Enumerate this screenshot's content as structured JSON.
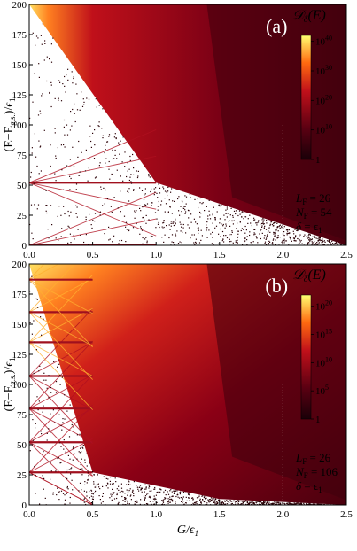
{
  "chart_data": [
    {
      "type": "heatmap",
      "panel_label": "(a)",
      "xlabel": "",
      "ylabel": "(E−E",
      "ylabel_sub": "g.s.",
      "ylabel_tail": ")/ϵ",
      "ylabel_tail_sub": "1",
      "xlim": [
        0,
        2.5
      ],
      "ylim": [
        0,
        200
      ],
      "xticks": [
        "0.0",
        "0.5",
        "1.0",
        "1.5",
        "2.0",
        "2.5"
      ],
      "yticks": [
        "0",
        "25",
        "50",
        "75",
        "100",
        "125",
        "150",
        "175",
        "200"
      ],
      "colorbar": {
        "title": "𝒟",
        "title_sub": "δ",
        "title_tail": "(E)",
        "scale": "log",
        "labels": [
          {
            "base": "10",
            "exp": "40",
            "value": 40
          },
          {
            "base": "10",
            "exp": "30",
            "value": 30
          },
          {
            "base": "10",
            "exp": "20",
            "value": 20
          },
          {
            "base": "10",
            "exp": "10",
            "value": 10
          },
          {
            "base": "1",
            "exp": "",
            "value": 0
          }
        ],
        "max_exp": 42
      },
      "params": [
        {
          "name": "L",
          "sub": "F",
          "value": " = 26"
        },
        {
          "name": "N",
          "sub": "F",
          "value": " = 54"
        },
        {
          "name": "δ",
          "sub": "",
          "value": " = ϵ",
          "value_sub": "1"
        }
      ],
      "boundary_line": {
        "x": [
          0,
          1.0,
          2.5
        ],
        "y": [
          200,
          52,
          0
        ]
      }
    },
    {
      "type": "heatmap",
      "panel_label": "(b)",
      "xlabel": "G/ϵ",
      "xlabel_sub": "1",
      "ylabel": "(E−E",
      "ylabel_sub": "g.s.",
      "ylabel_tail": ")/ϵ",
      "ylabel_tail_sub": "1",
      "xlim": [
        0,
        2.5
      ],
      "ylim": [
        0,
        200
      ],
      "xticks": [
        "0.0",
        "0.5",
        "1.0",
        "1.5",
        "2.0",
        "2.5"
      ],
      "yticks": [
        "0",
        "25",
        "50",
        "75",
        "100",
        "125",
        "150",
        "175",
        "200"
      ],
      "colorbar": {
        "title": "𝒟",
        "title_sub": "δ",
        "title_tail": "(E)",
        "scale": "log",
        "labels": [
          {
            "base": "10",
            "exp": "20",
            "value": 20
          },
          {
            "base": "10",
            "exp": "15",
            "value": 15
          },
          {
            "base": "10",
            "exp": "10",
            "value": 10
          },
          {
            "base": "10",
            "exp": "5",
            "value": 5
          },
          {
            "base": "1",
            "exp": "",
            "value": 0
          }
        ],
        "max_exp": 22
      },
      "params": [
        {
          "name": "L",
          "sub": "F",
          "value": " = 26"
        },
        {
          "name": "N",
          "sub": "F",
          "value": " = 106"
        },
        {
          "name": "δ",
          "sub": "",
          "value": " = ϵ",
          "value_sub": "1"
        }
      ],
      "boundary_line": {
        "x": [
          0,
          0.5,
          1.5,
          2.5
        ],
        "y": [
          200,
          27,
          5,
          0
        ]
      }
    }
  ],
  "colors": {
    "low": "#1a0008",
    "dark_red": "#5a0012",
    "red": "#c0101a",
    "orange": "#ff6a10",
    "yellow": "#ffff70"
  }
}
